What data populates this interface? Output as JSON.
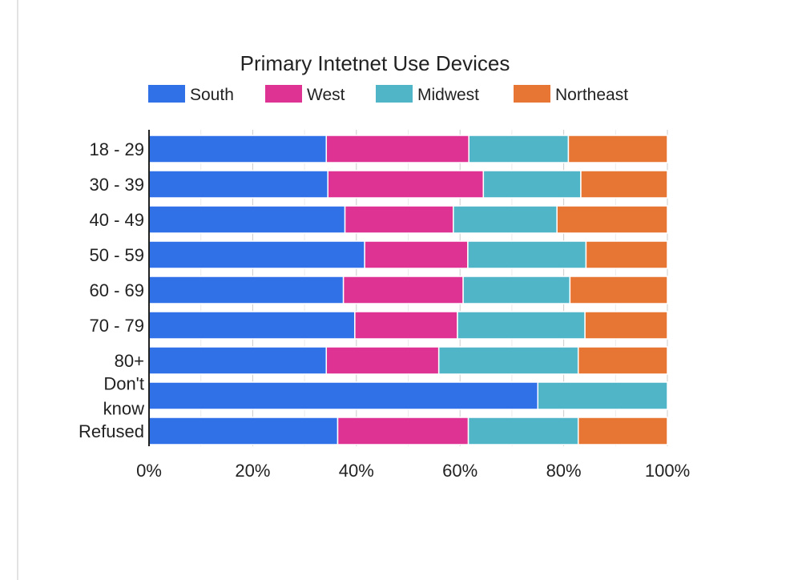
{
  "chart_data": {
    "type": "bar",
    "orientation": "horizontal",
    "stacked": "percent",
    "title": "Primary Intetnet Use Devices",
    "legend_position": "top",
    "categories": [
      [
        "18 - 29"
      ],
      [
        "30 - 39"
      ],
      [
        "40 - 49"
      ],
      [
        "50 - 59"
      ],
      [
        "60 - 69"
      ],
      [
        "70 - 79"
      ],
      [
        "80+"
      ],
      [
        "Don't",
        "know"
      ],
      [
        "Refused"
      ]
    ],
    "series": [
      {
        "name": "South",
        "color": "#3171e8",
        "values": [
          34.2,
          34.5,
          37.8,
          41.6,
          37.5,
          39.7,
          34.2,
          75.0,
          36.4
        ]
      },
      {
        "name": "West",
        "color": "#de3393",
        "values": [
          27.5,
          30.0,
          20.9,
          19.9,
          23.1,
          19.8,
          21.7,
          0.0,
          25.2
        ]
      },
      {
        "name": "Midwest",
        "color": "#51b5c8",
        "values": [
          19.2,
          18.8,
          20.0,
          22.8,
          20.6,
          24.6,
          26.9,
          25.0,
          21.2
        ]
      },
      {
        "name": "Northeast",
        "color": "#e77533",
        "values": [
          19.1,
          16.7,
          21.3,
          15.7,
          18.8,
          15.9,
          17.2,
          0.0,
          17.2
        ]
      }
    ],
    "xlim": [
      0,
      100
    ],
    "xticks": [
      "0%",
      "20%",
      "40%",
      "60%",
      "80%",
      "100%"
    ],
    "grid": true
  }
}
